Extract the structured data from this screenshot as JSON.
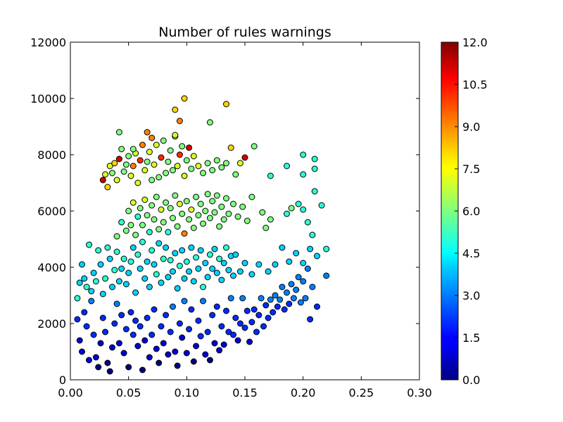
{
  "chart_data": {
    "type": "scatter",
    "title": "Number of rules warnings",
    "xlabel": "",
    "ylabel": "",
    "xlim": [
      0.0,
      0.3
    ],
    "ylim": [
      0,
      12000
    ],
    "grid": false,
    "x_ticks": [
      "0.00",
      "0.05",
      "0.10",
      "0.15",
      "0.20",
      "0.25",
      "0.30"
    ],
    "y_ticks": [
      "0",
      "2000",
      "4000",
      "6000",
      "8000",
      "10000",
      "12000"
    ],
    "colorbar": {
      "range": [
        0.0,
        12.0
      ],
      "colormap": "jet",
      "ticks": [
        "0.0",
        "1.5",
        "3.0",
        "4.5",
        "6.0",
        "7.5",
        "9.0",
        "10.5",
        "12.0"
      ]
    },
    "points": [
      [
        0.006,
        2150,
        2
      ],
      [
        0.008,
        1400,
        1
      ],
      [
        0.01,
        1000,
        1
      ],
      [
        0.012,
        2400,
        2
      ],
      [
        0.014,
        1900,
        2
      ],
      [
        0.016,
        700,
        1
      ],
      [
        0.018,
        2800,
        3
      ],
      [
        0.02,
        1600,
        2
      ],
      [
        0.022,
        800,
        1
      ],
      [
        0.024,
        450,
        0
      ],
      [
        0.026,
        1300,
        1
      ],
      [
        0.028,
        2200,
        2
      ],
      [
        0.03,
        1700,
        2
      ],
      [
        0.032,
        600,
        0
      ],
      [
        0.034,
        300,
        0
      ],
      [
        0.036,
        1150,
        1
      ],
      [
        0.038,
        2000,
        2
      ],
      [
        0.04,
        2700,
        3
      ],
      [
        0.042,
        1300,
        1
      ],
      [
        0.044,
        2300,
        2
      ],
      [
        0.046,
        950,
        1
      ],
      [
        0.048,
        1800,
        2
      ],
      [
        0.05,
        450,
        0
      ],
      [
        0.052,
        2400,
        2
      ],
      [
        0.054,
        1600,
        2
      ],
      [
        0.056,
        2100,
        2
      ],
      [
        0.058,
        1200,
        1
      ],
      [
        0.06,
        1900,
        2
      ],
      [
        0.062,
        350,
        0
      ],
      [
        0.064,
        1400,
        1
      ],
      [
        0.066,
        2200,
        2
      ],
      [
        0.068,
        800,
        1
      ],
      [
        0.07,
        1600,
        2
      ],
      [
        0.072,
        2500,
        2
      ],
      [
        0.074,
        1100,
        1
      ],
      [
        0.076,
        600,
        0
      ],
      [
        0.078,
        1900,
        2
      ],
      [
        0.08,
        1300,
        1
      ],
      [
        0.082,
        2300,
        2
      ],
      [
        0.084,
        900,
        1
      ],
      [
        0.086,
        1700,
        2
      ],
      [
        0.088,
        2600,
        3
      ],
      [
        0.09,
        1000,
        1
      ],
      [
        0.092,
        500,
        0
      ],
      [
        0.094,
        2000,
        2
      ],
      [
        0.096,
        1500,
        1
      ],
      [
        0.098,
        2800,
        3
      ],
      [
        0.1,
        950,
        1
      ],
      [
        0.102,
        1800,
        2
      ],
      [
        0.104,
        2500,
        2
      ],
      [
        0.106,
        650,
        0
      ],
      [
        0.108,
        1200,
        1
      ],
      [
        0.11,
        2100,
        2
      ],
      [
        0.112,
        1550,
        2
      ],
      [
        0.114,
        2800,
        3
      ],
      [
        0.116,
        900,
        1
      ],
      [
        0.118,
        1700,
        2
      ],
      [
        0.12,
        700,
        0
      ],
      [
        0.122,
        2300,
        2
      ],
      [
        0.124,
        1300,
        1
      ],
      [
        0.126,
        2600,
        2
      ],
      [
        0.128,
        1050,
        1
      ],
      [
        0.13,
        1900,
        2
      ],
      [
        0.132,
        1250,
        1
      ],
      [
        0.134,
        2450,
        2
      ],
      [
        0.136,
        1700,
        2
      ],
      [
        0.138,
        2900,
        3
      ],
      [
        0.14,
        1600,
        2
      ],
      [
        0.142,
        2200,
        2
      ],
      [
        0.144,
        1400,
        1
      ],
      [
        0.146,
        2000,
        2
      ],
      [
        0.148,
        2900,
        3
      ],
      [
        0.15,
        1850,
        2
      ],
      [
        0.152,
        2450,
        2
      ],
      [
        0.154,
        1350,
        1
      ],
      [
        0.156,
        2050,
        2
      ],
      [
        0.158,
        2500,
        2
      ],
      [
        0.16,
        1700,
        2
      ],
      [
        0.162,
        2300,
        2
      ],
      [
        0.164,
        2900,
        3
      ],
      [
        0.166,
        1900,
        2
      ],
      [
        0.168,
        2650,
        2
      ],
      [
        0.17,
        2200,
        2
      ],
      [
        0.172,
        2850,
        3
      ],
      [
        0.174,
        2400,
        2
      ],
      [
        0.176,
        3000,
        3
      ],
      [
        0.178,
        2600,
        2
      ],
      [
        0.18,
        2850,
        3
      ],
      [
        0.182,
        3300,
        3
      ],
      [
        0.184,
        2500,
        2
      ],
      [
        0.186,
        3100,
        3
      ],
      [
        0.188,
        2700,
        2
      ],
      [
        0.19,
        3400,
        3
      ],
      [
        0.192,
        2900,
        3
      ],
      [
        0.194,
        3200,
        3
      ],
      [
        0.196,
        3650,
        3
      ],
      [
        0.198,
        2750,
        3
      ],
      [
        0.2,
        3500,
        3
      ],
      [
        0.202,
        2900,
        3
      ],
      [
        0.204,
        3950,
        3
      ],
      [
        0.206,
        2150,
        2
      ],
      [
        0.208,
        3300,
        3
      ],
      [
        0.212,
        2600,
        2
      ],
      [
        0.22,
        3700,
        3
      ],
      [
        0.006,
        2900,
        5
      ],
      [
        0.008,
        3450,
        4
      ],
      [
        0.01,
        4100,
        4
      ],
      [
        0.012,
        3600,
        4
      ],
      [
        0.014,
        3300,
        5
      ],
      [
        0.016,
        4800,
        5
      ],
      [
        0.018,
        3150,
        4
      ],
      [
        0.02,
        3800,
        4
      ],
      [
        0.022,
        3500,
        5
      ],
      [
        0.024,
        4600,
        5
      ],
      [
        0.026,
        4100,
        4
      ],
      [
        0.028,
        3050,
        4
      ],
      [
        0.03,
        3600,
        5
      ],
      [
        0.032,
        4700,
        5
      ],
      [
        0.034,
        4300,
        4
      ],
      [
        0.036,
        3300,
        4
      ],
      [
        0.038,
        3900,
        5
      ],
      [
        0.04,
        4550,
        5
      ],
      [
        0.042,
        3500,
        4
      ],
      [
        0.044,
        3950,
        4
      ],
      [
        0.046,
        4300,
        5
      ],
      [
        0.048,
        3400,
        4
      ],
      [
        0.05,
        3800,
        4
      ],
      [
        0.052,
        4200,
        5
      ],
      [
        0.054,
        4700,
        4
      ],
      [
        0.056,
        3100,
        4
      ],
      [
        0.058,
        4450,
        5
      ],
      [
        0.06,
        3950,
        4
      ],
      [
        0.062,
        4900,
        5
      ],
      [
        0.064,
        3600,
        4
      ],
      [
        0.066,
        4200,
        4
      ],
      [
        0.068,
        3300,
        4
      ],
      [
        0.07,
        4600,
        5
      ],
      [
        0.072,
        4100,
        4
      ],
      [
        0.074,
        3750,
        5
      ],
      [
        0.076,
        4850,
        4
      ],
      [
        0.078,
        3450,
        4
      ],
      [
        0.08,
        4300,
        5
      ],
      [
        0.082,
        4700,
        4
      ],
      [
        0.084,
        3650,
        4
      ],
      [
        0.086,
        4250,
        5
      ],
      [
        0.088,
        3850,
        4
      ],
      [
        0.09,
        4500,
        4
      ],
      [
        0.092,
        3250,
        4
      ],
      [
        0.094,
        4050,
        5
      ],
      [
        0.096,
        4600,
        4
      ],
      [
        0.098,
        3600,
        4
      ],
      [
        0.1,
        4200,
        5
      ],
      [
        0.102,
        3850,
        4
      ],
      [
        0.104,
        4700,
        4
      ],
      [
        0.106,
        3500,
        4
      ],
      [
        0.108,
        4350,
        5
      ],
      [
        0.11,
        3950,
        4
      ],
      [
        0.112,
        4600,
        4
      ],
      [
        0.114,
        3300,
        5
      ],
      [
        0.116,
        4150,
        4
      ],
      [
        0.118,
        3650,
        4
      ],
      [
        0.12,
        4450,
        5
      ],
      [
        0.122,
        3950,
        4
      ],
      [
        0.124,
        4650,
        4
      ],
      [
        0.126,
        3800,
        4
      ],
      [
        0.128,
        4300,
        5
      ],
      [
        0.13,
        3550,
        4
      ],
      [
        0.132,
        4150,
        4
      ],
      [
        0.134,
        4700,
        5
      ],
      [
        0.136,
        3900,
        4
      ],
      [
        0.138,
        4400,
        4
      ],
      [
        0.14,
        3700,
        4
      ],
      [
        0.142,
        4450,
        4
      ],
      [
        0.146,
        3850,
        4
      ],
      [
        0.15,
        4150,
        4
      ],
      [
        0.156,
        3750,
        4
      ],
      [
        0.162,
        4100,
        4
      ],
      [
        0.17,
        3850,
        4
      ],
      [
        0.176,
        4100,
        4
      ],
      [
        0.182,
        4700,
        4
      ],
      [
        0.188,
        4200,
        4
      ],
      [
        0.194,
        4500,
        4
      ],
      [
        0.2,
        4150,
        4
      ],
      [
        0.206,
        4650,
        4
      ],
      [
        0.212,
        4400,
        4
      ],
      [
        0.22,
        4650,
        5
      ],
      [
        0.04,
        5100,
        6
      ],
      [
        0.044,
        5600,
        5
      ],
      [
        0.048,
        5300,
        6
      ],
      [
        0.05,
        6000,
        6
      ],
      [
        0.052,
        5500,
        6
      ],
      [
        0.054,
        6300,
        7
      ],
      [
        0.056,
        5150,
        6
      ],
      [
        0.058,
        5800,
        5
      ],
      [
        0.06,
        6100,
        6
      ],
      [
        0.062,
        5500,
        6
      ],
      [
        0.064,
        6400,
        7
      ],
      [
        0.066,
        5850,
        6
      ],
      [
        0.068,
        5250,
        5
      ],
      [
        0.07,
        6200,
        6
      ],
      [
        0.072,
        5700,
        6
      ],
      [
        0.074,
        6500,
        6
      ],
      [
        0.076,
        5350,
        6
      ],
      [
        0.078,
        6050,
        7
      ],
      [
        0.08,
        5600,
        6
      ],
      [
        0.082,
        6300,
        6
      ],
      [
        0.084,
        5250,
        5
      ],
      [
        0.086,
        6100,
        6
      ],
      [
        0.088,
        5750,
        6
      ],
      [
        0.09,
        6550,
        6
      ],
      [
        0.092,
        5450,
        6
      ],
      [
        0.094,
        6250,
        7
      ],
      [
        0.096,
        5900,
        6
      ],
      [
        0.098,
        5200,
        9
      ],
      [
        0.1,
        6350,
        6
      ],
      [
        0.102,
        5700,
        6
      ],
      [
        0.104,
        6050,
        7
      ],
      [
        0.106,
        5400,
        6
      ],
      [
        0.108,
        6500,
        6
      ],
      [
        0.11,
        5850,
        6
      ],
      [
        0.112,
        6250,
        6
      ],
      [
        0.114,
        5550,
        6
      ],
      [
        0.116,
        6000,
        6
      ],
      [
        0.118,
        6600,
        6
      ],
      [
        0.12,
        5750,
        6
      ],
      [
        0.122,
        6350,
        6
      ],
      [
        0.124,
        5950,
        6
      ],
      [
        0.126,
        6550,
        6
      ],
      [
        0.128,
        5450,
        6
      ],
      [
        0.13,
        6150,
        6
      ],
      [
        0.132,
        5700,
        6
      ],
      [
        0.134,
        6450,
        6
      ],
      [
        0.136,
        5900,
        6
      ],
      [
        0.14,
        6250,
        6
      ],
      [
        0.144,
        5800,
        6
      ],
      [
        0.148,
        6150,
        6
      ],
      [
        0.152,
        5650,
        6
      ],
      [
        0.156,
        6500,
        6
      ],
      [
        0.165,
        5950,
        6
      ],
      [
        0.168,
        5400,
        6
      ],
      [
        0.172,
        5700,
        6
      ],
      [
        0.186,
        5900,
        5
      ],
      [
        0.19,
        6100,
        6
      ],
      [
        0.196,
        6250,
        5
      ],
      [
        0.2,
        6050,
        5
      ],
      [
        0.204,
        5600,
        5
      ],
      [
        0.208,
        5150,
        5
      ],
      [
        0.21,
        6700,
        5
      ],
      [
        0.216,
        6200,
        5
      ],
      [
        0.028,
        7100,
        11
      ],
      [
        0.03,
        7300,
        7
      ],
      [
        0.032,
        6850,
        8
      ],
      [
        0.034,
        7600,
        7
      ],
      [
        0.036,
        7350,
        6
      ],
      [
        0.038,
        7700,
        8
      ],
      [
        0.04,
        7100,
        7
      ],
      [
        0.042,
        7850,
        11
      ],
      [
        0.044,
        8200,
        6
      ],
      [
        0.046,
        7400,
        6
      ],
      [
        0.048,
        7650,
        6
      ],
      [
        0.05,
        7950,
        6
      ],
      [
        0.052,
        7250,
        7
      ],
      [
        0.054,
        7600,
        9
      ],
      [
        0.056,
        8050,
        7
      ],
      [
        0.058,
        7000,
        7
      ],
      [
        0.06,
        7800,
        10
      ],
      [
        0.062,
        8350,
        9
      ],
      [
        0.064,
        7450,
        7
      ],
      [
        0.066,
        7750,
        6
      ],
      [
        0.068,
        8100,
        7
      ],
      [
        0.07,
        7100,
        6
      ],
      [
        0.072,
        7650,
        7
      ],
      [
        0.074,
        8350,
        7
      ],
      [
        0.076,
        7200,
        6
      ],
      [
        0.078,
        7900,
        10
      ],
      [
        0.08,
        8500,
        6
      ],
      [
        0.082,
        7350,
        6
      ],
      [
        0.084,
        7750,
        6
      ],
      [
        0.086,
        8150,
        6
      ],
      [
        0.088,
        7450,
        6
      ],
      [
        0.09,
        8650,
        6
      ],
      [
        0.092,
        7600,
        7
      ],
      [
        0.094,
        8000,
        10
      ],
      [
        0.096,
        8300,
        6
      ],
      [
        0.098,
        7250,
        7
      ],
      [
        0.1,
        7800,
        6
      ],
      [
        0.102,
        8250,
        11
      ],
      [
        0.104,
        7500,
        6
      ],
      [
        0.106,
        7950,
        7
      ],
      [
        0.11,
        7600,
        7
      ],
      [
        0.114,
        7350,
        6
      ],
      [
        0.118,
        7700,
        6
      ],
      [
        0.122,
        7450,
        6
      ],
      [
        0.126,
        7800,
        6
      ],
      [
        0.13,
        7550,
        6
      ],
      [
        0.134,
        7700,
        6
      ],
      [
        0.138,
        8250,
        8
      ],
      [
        0.142,
        7300,
        6
      ],
      [
        0.146,
        7700,
        7
      ],
      [
        0.15,
        7900,
        11
      ],
      [
        0.158,
        8300,
        6
      ],
      [
        0.172,
        7250,
        5
      ],
      [
        0.186,
        7600,
        5
      ],
      [
        0.2,
        7300,
        5
      ],
      [
        0.2,
        8000,
        5
      ],
      [
        0.21,
        7500,
        5
      ],
      [
        0.21,
        7850,
        5
      ],
      [
        0.042,
        8800,
        6
      ],
      [
        0.054,
        8200,
        6
      ],
      [
        0.066,
        8800,
        9
      ],
      [
        0.07,
        8600,
        9
      ],
      [
        0.09,
        8700,
        7
      ],
      [
        0.094,
        9200,
        9
      ],
      [
        0.09,
        9600,
        8
      ],
      [
        0.098,
        10000,
        8
      ],
      [
        0.12,
        9150,
        6
      ],
      [
        0.134,
        9800,
        8
      ]
    ]
  }
}
